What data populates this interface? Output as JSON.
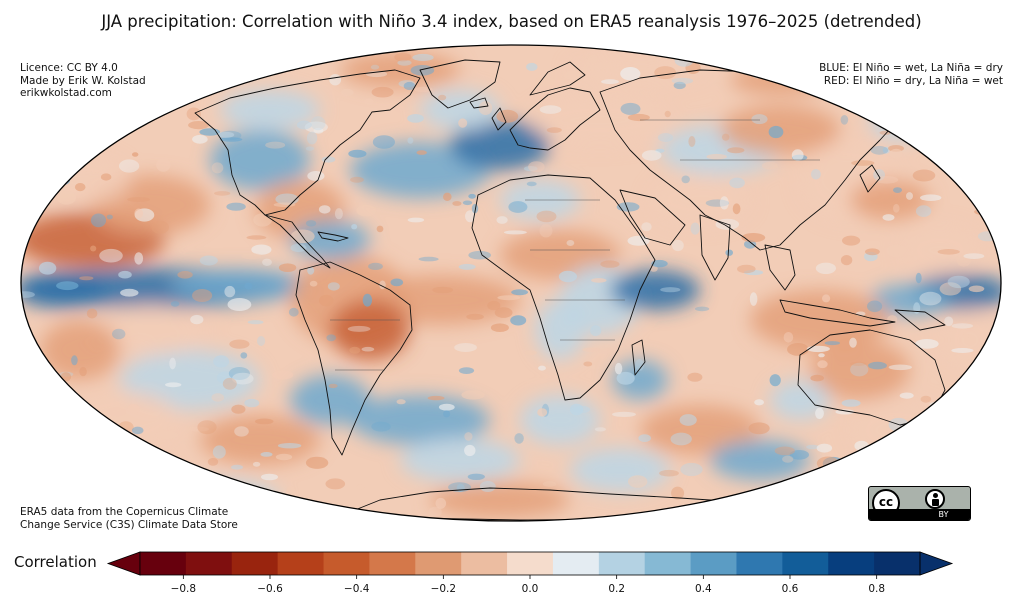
{
  "title": "JJA precipitation: Correlation with Niño 3.4 index, based on ERA5 reanalysis 1976–2025 (detrended)",
  "licence_lines": [
    "Licence: CC BY 4.0",
    "Made by Erik W. Kolstad",
    "erikwkolstad.com"
  ],
  "legend_lines": [
    "BLUE: El Niño = wet, La Niña = dry",
    "RED: El Niño = dry, La Niña = wet"
  ],
  "source_lines": [
    "ERA5 data from the Copernicus Climate",
    "Change Service (C3S) Climate Data Store"
  ],
  "cc_badge": {
    "cc_text": "cc",
    "by_text": "BY"
  },
  "colorbar": {
    "label": "Correlation",
    "ticks": [
      "−0.8",
      "−0.6",
      "−0.4",
      "−0.2",
      "0.0",
      "0.2",
      "0.4",
      "0.6",
      "0.8"
    ],
    "tick_values": [
      -0.8,
      -0.6,
      -0.4,
      -0.2,
      0.0,
      0.2,
      0.4,
      0.6,
      0.8
    ],
    "range": [
      -0.9,
      0.9
    ],
    "colors": [
      "#67000d",
      "#7f0f0f",
      "#99240e",
      "#b5401a",
      "#c65b2c",
      "#d4784a",
      "#df9a72",
      "#ecbda1",
      "#f5dccc",
      "#e4ecf2",
      "#b4d2e3",
      "#86b9d4",
      "#5b9cc4",
      "#2f78b0",
      "#125d99",
      "#073e7e",
      "#08306b"
    ]
  },
  "map": {
    "projection": "Mollweide",
    "palette": {
      "strong_red": "#c8633a",
      "red": "#e4a07a",
      "light_red": "#f2cdb7",
      "neutral": "#eeeeee",
      "light_blue": "#bcd6e6",
      "blue": "#6fa9cf",
      "strong_blue": "#2b6fa8"
    }
  }
}
